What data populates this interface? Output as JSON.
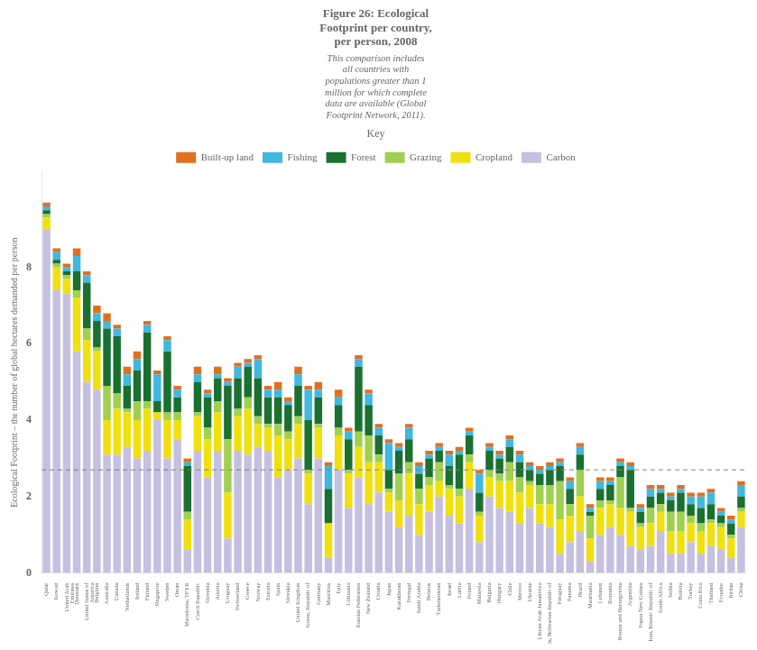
{
  "chart_data": {
    "type": "bar",
    "stacked": true,
    "title": "Figure 26: Ecological\nFootprint per country,\nper person, 2008",
    "subtitle": "This comparison includes\nall countries with\npopulations greater than 1\nmillion for which complete\ndata are available (Global\nFootprint Network, 2011).",
    "ylabel": "Ecological Footprint – the number of global hectares demanded per person",
    "legend_title": "Key",
    "legend": "top",
    "grid": false,
    "hline": 2.7,
    "ylim": [
      0,
      10.5
    ],
    "yticks": [
      0,
      2,
      4,
      6,
      8
    ],
    "categories": [
      "Qatar",
      "Kuwait",
      "United Arab\nEmirates",
      "Denmark",
      "United States of\nAmerica",
      "Belgium",
      "Australia",
      "Canada",
      "Netherlands",
      "Ireland",
      "Finland",
      "Singapore",
      "Sweden",
      "Oman",
      "Macedonia, TFYR",
      "Czech Republic",
      "Slovenia",
      "Austria",
      "Uruguay",
      "Switzerland",
      "Greece",
      "Norway",
      "Estonia",
      "Spain",
      "Slovakia",
      "United Kingdom",
      "Korea, Republic of",
      "Germany",
      "Mauritius",
      "Italy",
      "Lithuania",
      "Russian Federation",
      "New Zealand",
      "Croatia",
      "Japan",
      "Kazakhstan",
      "Portugal",
      "Saudi Arabia",
      "Belarus",
      "Turkmenistan",
      "Israel",
      "Latvia",
      "Poland",
      "Malaysia",
      "Bulgaria",
      "Hungary",
      "Chile",
      "Mexico",
      "Ukraine",
      "Libyan Arab Jamahiriya",
      "la, Bolivarian Republic of",
      "Paraguay",
      "Panama",
      "Brazil",
      "Mauritania",
      "Lebanon",
      "Romania",
      "Bosnia and Herzegovina",
      "Argentina",
      "Papua New Guinea",
      "Iran, Islamic Republic of",
      "South Africa",
      "Serbia",
      "Bolivia",
      "Turkey",
      "Costa Rica",
      "Thailand",
      "Ecuador",
      "Jordan",
      "China"
    ],
    "series": [
      {
        "name": "Carbon",
        "color": "#c5c0e0",
        "values": [
          9.0,
          7.4,
          7.3,
          5.8,
          5.0,
          4.8,
          3.1,
          3.1,
          3.3,
          3.0,
          3.2,
          4.0,
          3.0,
          3.5,
          0.6,
          3.2,
          2.5,
          3.2,
          0.9,
          3.2,
          3.1,
          3.3,
          3.2,
          2.5,
          2.7,
          3.0,
          1.8,
          3.0,
          0.4,
          2.7,
          1.7,
          2.5,
          1.8,
          2.1,
          1.6,
          1.2,
          1.5,
          1.0,
          1.6,
          2.0,
          1.5,
          1.3,
          2.2,
          0.8,
          2.0,
          1.7,
          1.6,
          1.3,
          1.7,
          1.3,
          1.2,
          0.5,
          0.8,
          1.1,
          0.3,
          1.0,
          1.2,
          1.0,
          0.7,
          0.6,
          0.7,
          1.1,
          0.5,
          0.5,
          0.8,
          0.5,
          0.7,
          0.6,
          0.4,
          1.2
        ]
      },
      {
        "name": "Cropland",
        "color": "#f0e010",
        "values": [
          0.3,
          0.6,
          0.4,
          1.4,
          1.1,
          1.0,
          0.9,
          1.2,
          0.9,
          1.0,
          1.1,
          0.2,
          1.0,
          0.5,
          0.8,
          0.9,
          1.0,
          1.0,
          1.2,
          0.9,
          1.2,
          0.6,
          0.6,
          1.1,
          0.8,
          0.9,
          0.8,
          0.8,
          0.9,
          0.9,
          0.9,
          0.8,
          1.1,
          0.8,
          0.5,
          0.7,
          1.1,
          0.8,
          0.7,
          0.4,
          0.7,
          0.7,
          0.7,
          0.7,
          0.5,
          0.7,
          0.8,
          0.8,
          0.6,
          0.5,
          0.6,
          0.9,
          0.7,
          0.9,
          0.6,
          0.7,
          0.6,
          0.7,
          0.9,
          0.6,
          0.6,
          0.5,
          0.6,
          0.6,
          0.5,
          0.6,
          0.6,
          0.6,
          0.5,
          0.4
        ]
      },
      {
        "name": "Grazing",
        "color": "#a0d050",
        "values": [
          0.1,
          0.1,
          0.1,
          0.2,
          0.3,
          0.1,
          0.9,
          0.4,
          0.1,
          0.5,
          0.2,
          0.0,
          0.2,
          0.2,
          0.2,
          0.1,
          0.3,
          0.3,
          1.4,
          0.2,
          0.3,
          0.2,
          0.1,
          0.3,
          0.2,
          0.2,
          0.1,
          0.1,
          0.0,
          0.2,
          0.1,
          0.4,
          0.7,
          0.2,
          0.1,
          0.7,
          0.3,
          0.4,
          0.2,
          0.5,
          0.1,
          0.2,
          0.2,
          0.1,
          0.2,
          0.2,
          0.5,
          0.4,
          0.1,
          0.5,
          0.5,
          1.0,
          0.3,
          0.7,
          0.6,
          0.2,
          0.1,
          0.8,
          0.1,
          0.1,
          0.4,
          0.2,
          0.5,
          0.5,
          0.2,
          0.2,
          0.1,
          0.1,
          0.1,
          0.1
        ]
      },
      {
        "name": "Forest",
        "color": "#1a7030",
        "values": [
          0.1,
          0.1,
          0.1,
          0.5,
          1.2,
          0.7,
          1.5,
          1.5,
          0.6,
          0.8,
          1.8,
          0.3,
          1.6,
          0.4,
          1.2,
          0.8,
          0.8,
          0.6,
          1.4,
          0.8,
          0.8,
          1.0,
          0.7,
          0.7,
          0.7,
          0.8,
          1.3,
          0.7,
          0.9,
          0.6,
          0.8,
          1.7,
          0.8,
          0.5,
          0.5,
          0.6,
          0.6,
          0.4,
          0.5,
          0.3,
          0.5,
          0.9,
          0.5,
          0.5,
          0.5,
          0.4,
          0.4,
          0.4,
          0.3,
          0.3,
          0.4,
          0.4,
          0.4,
          0.4,
          0.1,
          0.3,
          0.4,
          0.3,
          1.0,
          0.3,
          0.3,
          0.3,
          0.3,
          0.5,
          0.3,
          0.4,
          0.4,
          0.2,
          0.3,
          0.3
        ]
      },
      {
        "name": "Fishing",
        "color": "#40b8e0",
        "values": [
          0.1,
          0.2,
          0.1,
          0.4,
          0.2,
          0.2,
          0.2,
          0.2,
          0.3,
          0.3,
          0.2,
          0.7,
          0.3,
          0.2,
          0.1,
          0.2,
          0.1,
          0.1,
          0.1,
          0.3,
          0.1,
          0.5,
          0.2,
          0.2,
          0.1,
          0.3,
          0.8,
          0.2,
          0.6,
          0.2,
          0.2,
          0.2,
          0.3,
          0.2,
          0.7,
          0.1,
          0.3,
          0.2,
          0.1,
          0.1,
          0.3,
          0.1,
          0.1,
          0.5,
          0.1,
          0.1,
          0.2,
          0.2,
          0.1,
          0.1,
          0.1,
          0.1,
          0.2,
          0.2,
          0.1,
          0.2,
          0.1,
          0.1,
          0.1,
          0.1,
          0.2,
          0.1,
          0.1,
          0.1,
          0.2,
          0.3,
          0.3,
          0.1,
          0.1,
          0.3
        ]
      },
      {
        "name": "Built-up land",
        "color": "#e07020",
        "values": [
          0.1,
          0.1,
          0.1,
          0.2,
          0.1,
          0.2,
          0.2,
          0.1,
          0.2,
          0.2,
          0.1,
          0.1,
          0.1,
          0.1,
          0.1,
          0.2,
          0.1,
          0.2,
          0.1,
          0.1,
          0.1,
          0.1,
          0.1,
          0.2,
          0.1,
          0.2,
          0.1,
          0.2,
          0.1,
          0.2,
          0.1,
          0.1,
          0.1,
          0.1,
          0.1,
          0.1,
          0.1,
          0.1,
          0.1,
          0.1,
          0.1,
          0.1,
          0.1,
          0.1,
          0.1,
          0.1,
          0.1,
          0.1,
          0.1,
          0.1,
          0.1,
          0.1,
          0.1,
          0.1,
          0.1,
          0.1,
          0.1,
          0.1,
          0.1,
          0.1,
          0.1,
          0.1,
          0.1,
          0.1,
          0.1,
          0.1,
          0.1,
          0.1,
          0.1,
          0.1
        ]
      }
    ]
  }
}
